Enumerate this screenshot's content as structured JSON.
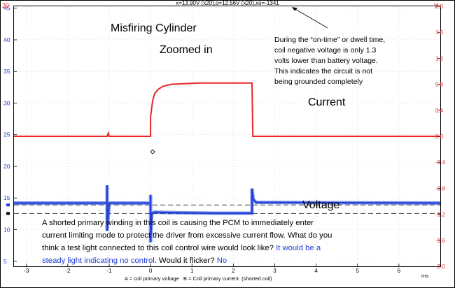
{
  "chart_data": {
    "type": "line",
    "header_readout": "x=13.90V (x20),o=12.56V (x20),xo=-1341",
    "corner_left": "20",
    "corner_right": "V",
    "x_unit": "ms",
    "xlim": [
      -3.3,
      7.0
    ],
    "x_ticks": [
      -3,
      -2,
      -1,
      0,
      1,
      2,
      3,
      4,
      5,
      6
    ],
    "left_axis": {
      "ylim": [
        4.2,
        45.3
      ],
      "ticks": [
        5,
        10,
        15,
        20,
        25,
        30,
        35,
        40,
        45
      ]
    },
    "right_axis": {
      "ylim": [
        -2.0,
        2.0
      ],
      "ticks": [
        -2.0,
        -1.6,
        -1.2,
        -0.8,
        -0.4,
        0.0,
        0.4,
        0.8,
        1.2,
        1.6,
        2.0
      ],
      "tick_labels": [
        "-2.0",
        "-1.6",
        "-1.2",
        "-0.8",
        "-0.4",
        "0.0",
        "0.4",
        "0.8",
        "1.2",
        "1.6",
        "2.0"
      ]
    },
    "cursor_lines": [
      13.9,
      12.56
    ],
    "legend": "A = coil primary voltage   B = Coil primary current  (shorted coil)",
    "series": [
      {
        "name": "A = coil primary voltage",
        "color": "#1f3fd6",
        "x": [
          -3.3,
          -1.05,
          -1.05,
          -1.05,
          -1.0,
          0.0,
          0.0,
          0.0,
          0.03,
          0.1,
          0.5,
          1.5,
          2.45,
          2.45,
          2.48,
          2.55,
          7.0
        ],
        "y": [
          14.2,
          14.2,
          17.0,
          9.8,
          14.2,
          14.2,
          15.5,
          8.0,
          12.6,
          12.75,
          12.7,
          12.6,
          12.6,
          16.5,
          14.8,
          14.3,
          14.2
        ]
      },
      {
        "name": "B = Coil primary current",
        "color": "#e8262a",
        "x": [
          -3.3,
          -1.05,
          -1.02,
          -1.0,
          0.0,
          0.0,
          0.05,
          0.1,
          0.2,
          0.3,
          0.5,
          0.8,
          1.2,
          1.8,
          2.45,
          2.47,
          7.0
        ],
        "y": [
          0.0,
          0.0,
          0.05,
          0.0,
          0.0,
          0.3,
          0.55,
          0.66,
          0.73,
          0.77,
          0.8,
          0.81,
          0.82,
          0.82,
          0.82,
          0.0,
          0.0
        ]
      }
    ],
    "marker": {
      "x": 0.05,
      "y_left": 22.3
    },
    "annotations": {
      "title1": "Misfiring Cylinder",
      "title2": "Zoomed in",
      "current_label": "Current",
      "voltage_label": "Voltage",
      "note": [
        "During the “on-time” or dwell time,",
        "coil negative voltage is only 1.3",
        "volts lower than battery voltage.",
        "This indicates the circuit is not",
        "being grounded completely"
      ],
      "bottom_black_1": "A shorted primary winding in this coil is causing the PCM to immediately  enter",
      "bottom_black_2": "current limiting mode to protect the driver from excessive current flow. What do you",
      "bottom_black_3a": "think a test light connected to this coil control wire would look like? ",
      "bottom_blue_3b": "It would be a",
      "bottom_blue_4a": "steady light indicating no control",
      "bottom_black_4b": ".  Would it flicker? ",
      "bottom_blue_4c": "No"
    }
  }
}
